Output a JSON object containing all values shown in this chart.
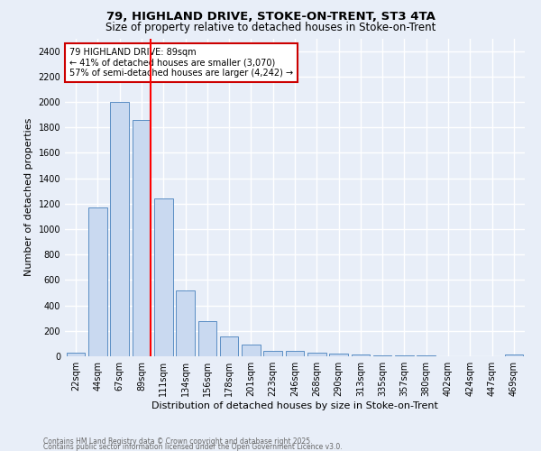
{
  "title1": "79, HIGHLAND DRIVE, STOKE-ON-TRENT, ST3 4TA",
  "title2": "Size of property relative to detached houses in Stoke-on-Trent",
  "xlabel": "Distribution of detached houses by size in Stoke-on-Trent",
  "ylabel": "Number of detached properties",
  "bin_labels": [
    "22sqm",
    "44sqm",
    "67sqm",
    "89sqm",
    "111sqm",
    "134sqm",
    "156sqm",
    "178sqm",
    "201sqm",
    "223sqm",
    "246sqm",
    "268sqm",
    "290sqm",
    "313sqm",
    "335sqm",
    "357sqm",
    "380sqm",
    "402sqm",
    "424sqm",
    "447sqm",
    "469sqm"
  ],
  "bar_values": [
    30,
    1170,
    2000,
    1860,
    1240,
    520,
    280,
    155,
    90,
    45,
    45,
    25,
    20,
    12,
    8,
    5,
    4,
    3,
    2,
    2,
    15
  ],
  "bar_color": "#c9d9f0",
  "bar_edge_color": "#5b8ec4",
  "red_line_bin": 3,
  "annotation_text": "79 HIGHLAND DRIVE: 89sqm\n← 41% of detached houses are smaller (3,070)\n57% of semi-detached houses are larger (4,242) →",
  "annotation_box_color": "#ffffff",
  "annotation_box_edge": "#cc0000",
  "ylim": [
    0,
    2500
  ],
  "yticks": [
    0,
    200,
    400,
    600,
    800,
    1000,
    1200,
    1400,
    1600,
    1800,
    2000,
    2200,
    2400
  ],
  "footer1": "Contains HM Land Registry data © Crown copyright and database right 2025.",
  "footer2": "Contains public sector information licensed under the Open Government Licence v3.0.",
  "bg_color": "#e8eef8",
  "grid_color": "#ffffff",
  "title_fontsize": 9.5,
  "subtitle_fontsize": 8.5,
  "tick_fontsize": 7,
  "ylabel_fontsize": 8,
  "xlabel_fontsize": 8,
  "annotation_fontsize": 7,
  "footer_fontsize": 5.5
}
